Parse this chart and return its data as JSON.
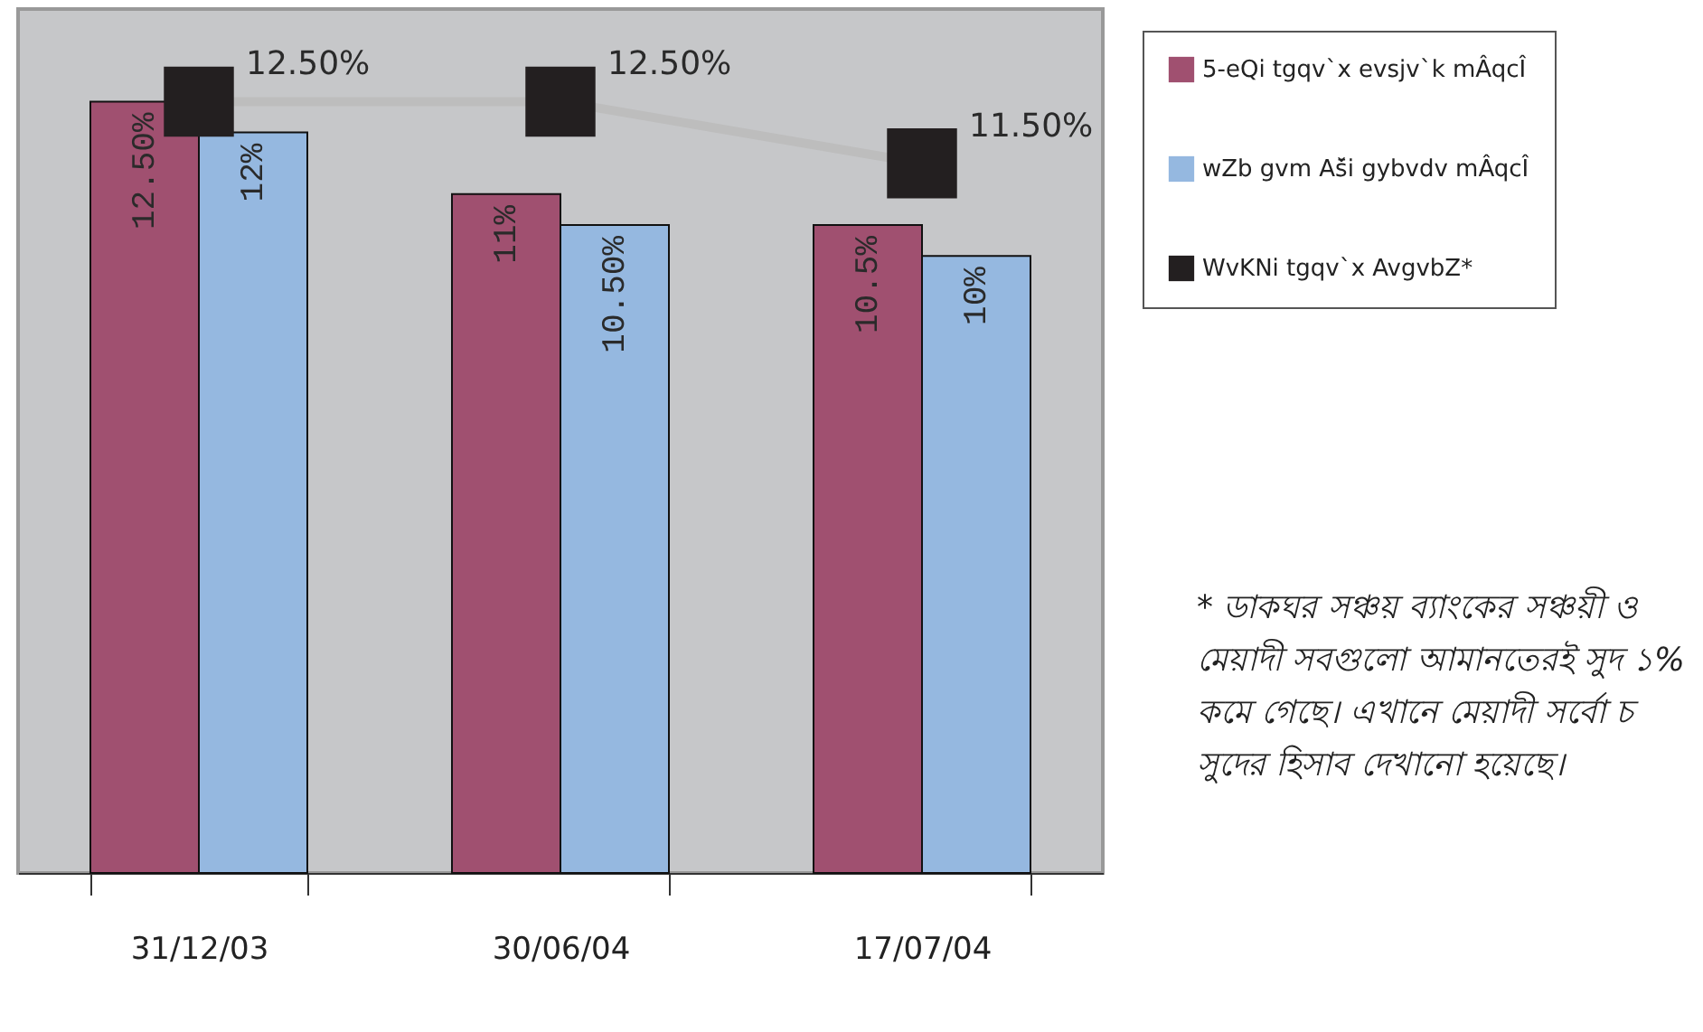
{
  "chart_data": {
    "type": "bar",
    "categories": [
      "31/12/03",
      "30/06/04",
      "17/07/04"
    ],
    "series": [
      {
        "name": "5-eQi tgqv`x evsjv`k mÂqcÎ",
        "color": "#a05070",
        "values": [
          12.5,
          11,
          10.5
        ],
        "value_labels": [
          "12.50%",
          "11%",
          "10.5%"
        ]
      },
      {
        "name": "wZb gvm Aš̄i gybvdv mÂqcÎ",
        "color": "#95b8e0",
        "values": [
          12,
          10.5,
          10
        ],
        "value_labels": [
          "12%",
          "10.50%",
          "10%"
        ]
      },
      {
        "name": "WvKNi tgqv`x AvgvbZ*",
        "type": "line",
        "marker": "square",
        "color": "#231f20",
        "values": [
          12.5,
          12.5,
          11.5
        ],
        "value_labels": [
          "12.50%",
          "12.50%",
          "11.50%"
        ]
      }
    ],
    "ylim": [
      0,
      14
    ],
    "tick_labels": "x",
    "grid": false,
    "legend": "right",
    "annotations": [
      "* ডাকঘর সঞ্চয় ব্যাংকের সঞ্চয়ী ও মেয়াদী সবগুলো আমানতেরই সুদ ১% কমে গেছে। এখানে মেয়াদী সর্বো চ সুদের হিসাব দেখানো হয়েছে।"
    ]
  }
}
